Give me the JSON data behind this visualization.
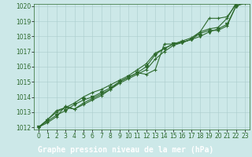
{
  "title": "Graphe pression niveau de la mer (hPa)",
  "xlabel_hours": [
    0,
    1,
    2,
    3,
    4,
    5,
    6,
    7,
    8,
    9,
    10,
    11,
    12,
    13,
    14,
    15,
    16,
    17,
    18,
    19,
    20,
    21,
    22,
    23
  ],
  "series": [
    [
      1012.0,
      1012.5,
      1013.1,
      1013.3,
      1013.2,
      1013.6,
      1013.9,
      1014.2,
      1014.5,
      1015.0,
      1015.3,
      1015.6,
      1015.5,
      1015.8,
      1017.5,
      1017.5,
      1017.6,
      1017.8,
      1018.3,
      1019.2,
      1019.2,
      1019.3,
      1020.1,
      1020.5
    ],
    [
      1012.0,
      1012.5,
      1013.0,
      1013.3,
      1013.6,
      1014.0,
      1014.3,
      1014.5,
      1014.8,
      1015.1,
      1015.4,
      1015.8,
      1016.2,
      1016.9,
      1017.2,
      1017.5,
      1017.7,
      1017.9,
      1018.3,
      1018.5,
      1018.6,
      1019.2,
      1020.2,
      1020.5
    ],
    [
      1012.0,
      1012.4,
      1012.8,
      1013.1,
      1013.5,
      1013.8,
      1014.0,
      1014.3,
      1014.6,
      1015.0,
      1015.3,
      1015.6,
      1016.0,
      1016.8,
      1017.2,
      1017.5,
      1017.6,
      1017.8,
      1018.0,
      1018.3,
      1018.5,
      1018.8,
      1020.0,
      1020.3
    ],
    [
      1012.0,
      1012.3,
      1012.7,
      1013.4,
      1013.2,
      1013.5,
      1013.8,
      1014.1,
      1014.5,
      1014.9,
      1015.2,
      1015.5,
      1015.8,
      1016.5,
      1017.0,
      1017.4,
      1017.6,
      1017.8,
      1018.2,
      1018.4,
      1018.4,
      1018.7,
      1020.0,
      1020.2
    ]
  ],
  "line_color": "#2d6a2d",
  "marker_colors": [
    "#2d6a2d",
    "#2d6a2d",
    "#2d6a2d",
    "#2d6a2d"
  ],
  "bg_color": "#cce8e8",
  "grid_color": "#aacccc",
  "text_color": "#2d6a2d",
  "banner_color": "#2d6a2d",
  "banner_text_color": "#ffffff",
  "ylim": [
    1012,
    1020
  ],
  "xlim": [
    0,
    23
  ],
  "yticks": [
    1012,
    1013,
    1014,
    1015,
    1016,
    1017,
    1018,
    1019,
    1020
  ],
  "xticks": [
    0,
    1,
    2,
    3,
    4,
    5,
    6,
    7,
    8,
    9,
    10,
    11,
    12,
    13,
    14,
    15,
    16,
    17,
    18,
    19,
    20,
    21,
    22,
    23
  ],
  "title_fontsize": 7.0,
  "tick_fontsize": 5.5,
  "linewidth": 0.8,
  "marker_size": 3.0
}
